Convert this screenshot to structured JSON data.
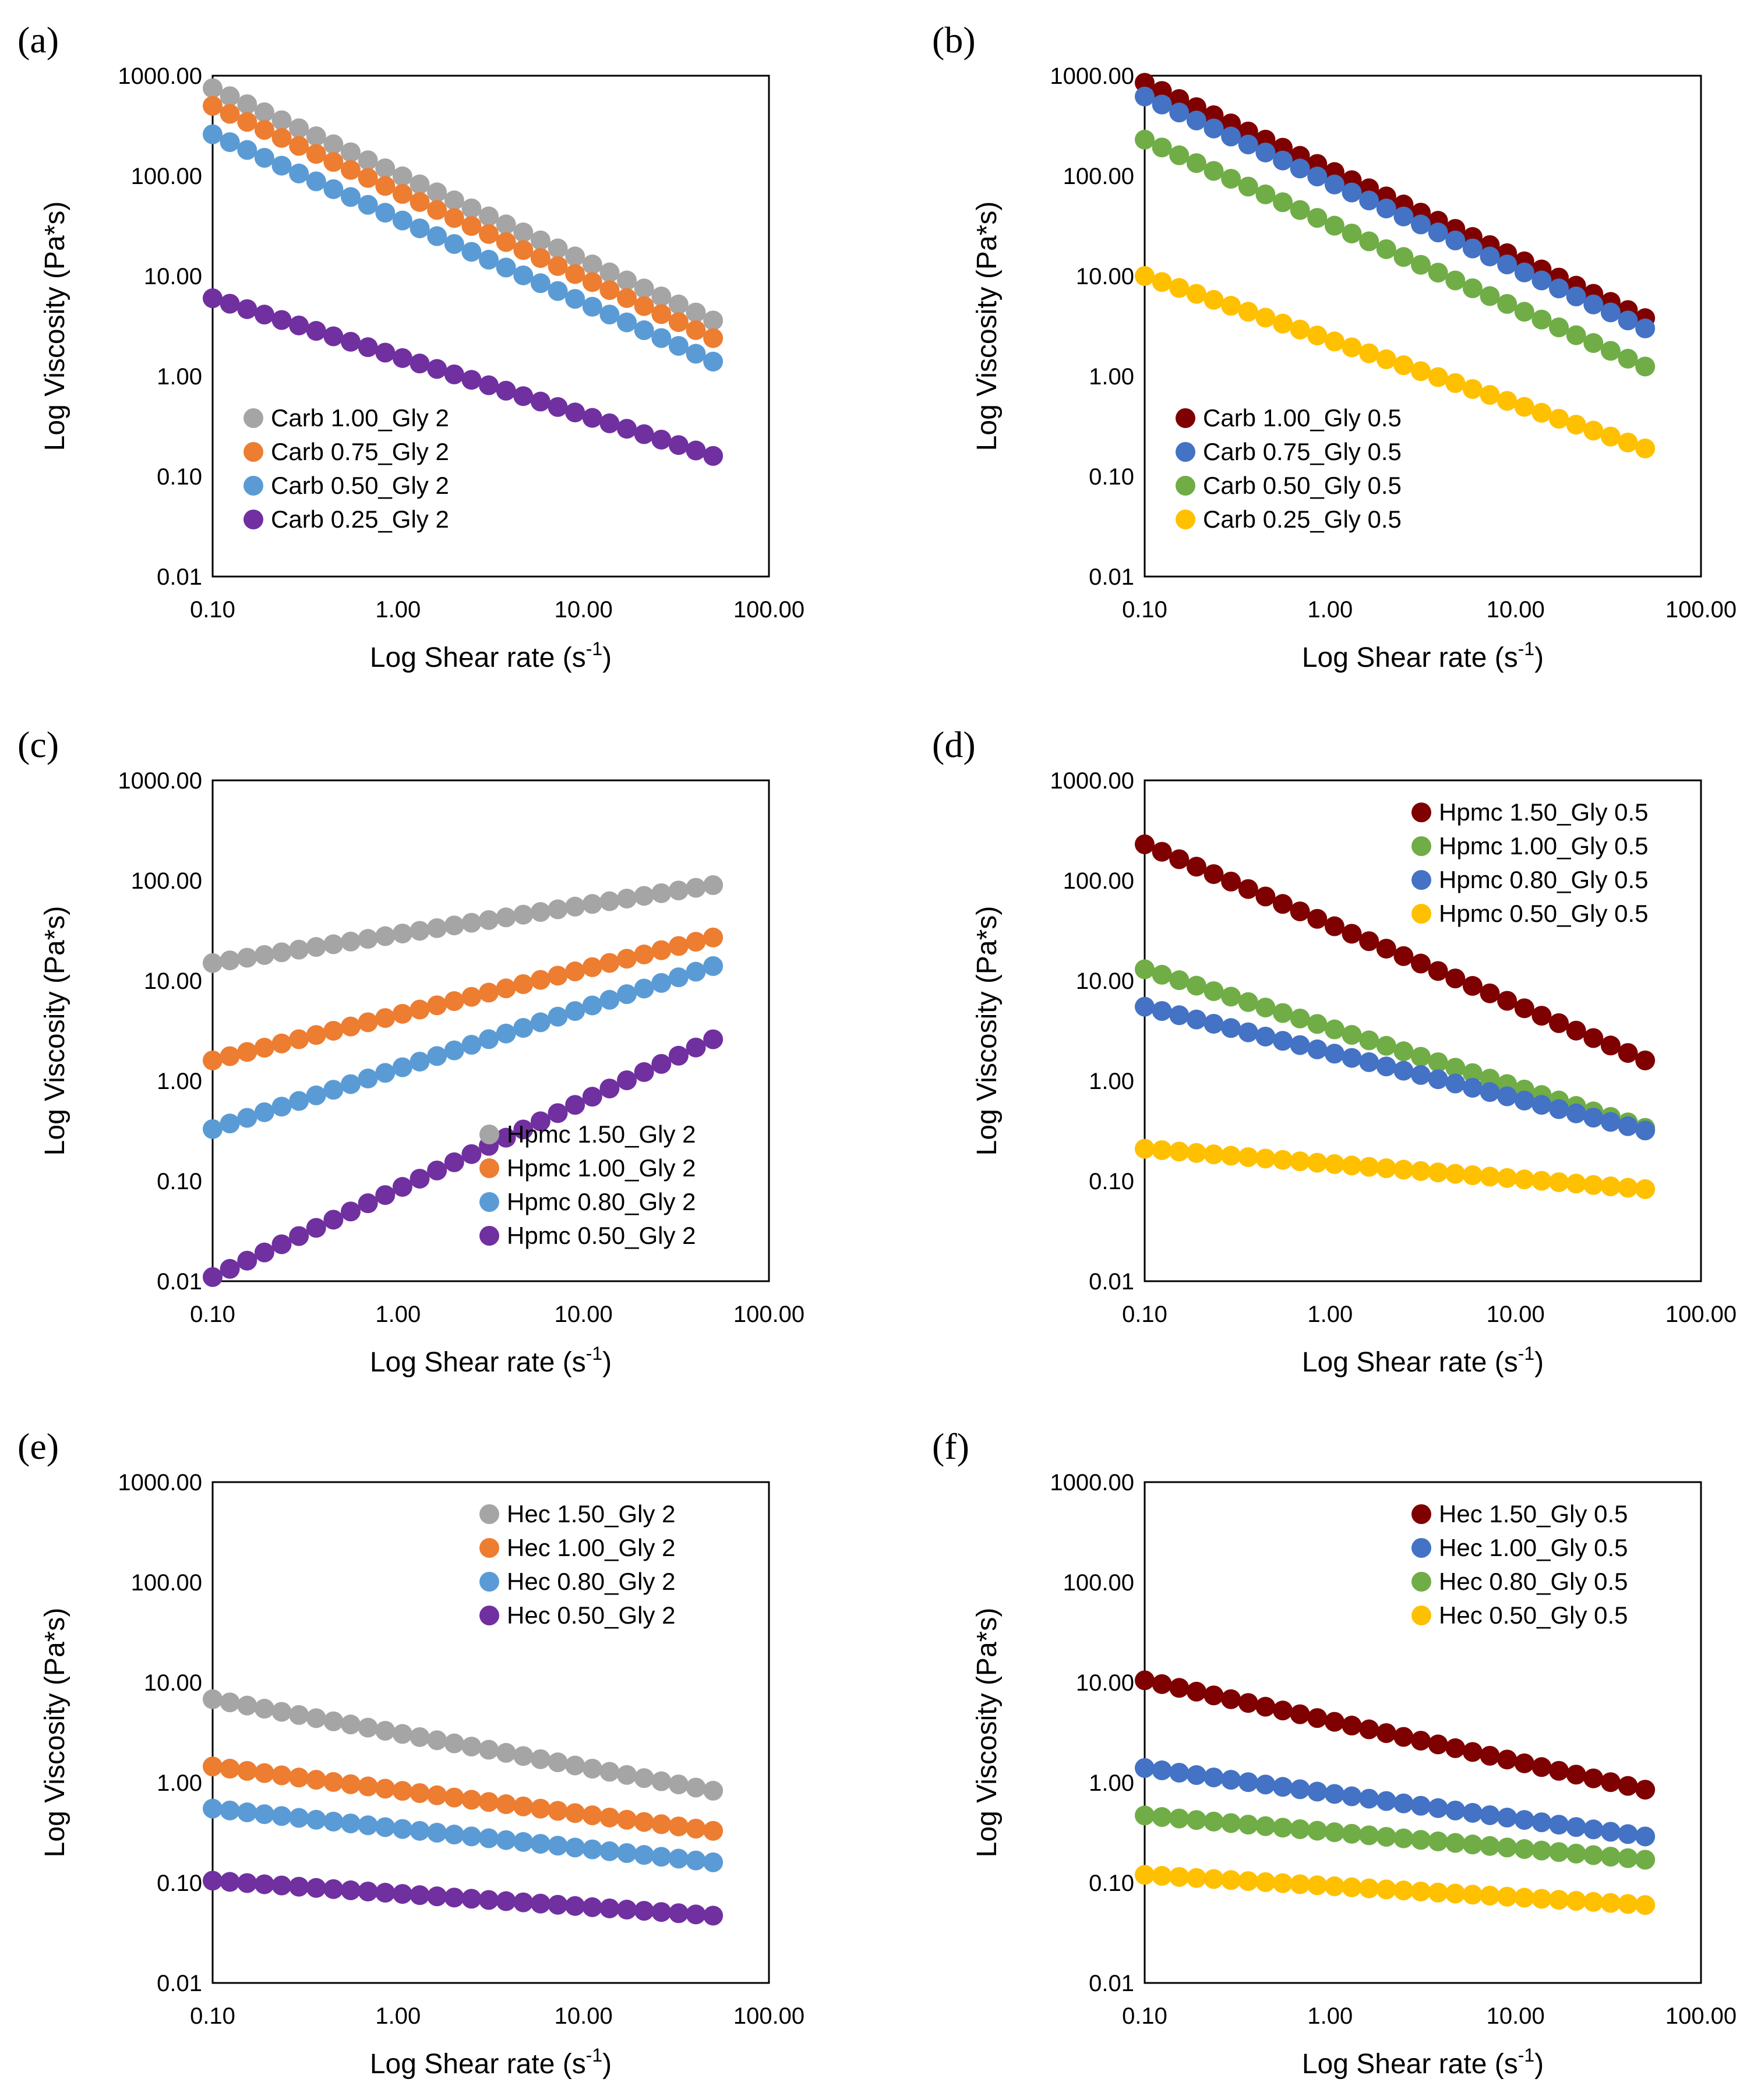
{
  "chart_data": [
    {
      "type": "scatter",
      "panel_label": "(a)",
      "xlabel": "Log Shear rate (s",
      "xlabel_exponent": "-1",
      "xlabel_suffix": ")",
      "ylabel": "Log Viscosity (Pa*s)",
      "x_scale": "log",
      "y_scale": "log",
      "xlim": [
        0.1,
        100
      ],
      "ylim": [
        0.01,
        1000
      ],
      "xticks": [
        "0.10",
        "1.00",
        "10.00",
        "100.00"
      ],
      "yticks": [
        "0.01",
        "0.10",
        "1.00",
        "10.00",
        "100.00",
        "1000.00"
      ],
      "legend_position": "bottom-left",
      "x_range": [
        0.1,
        50
      ],
      "points_per_series": 30,
      "series": [
        {
          "name": "Carb 1.00_Gly 2",
          "color": "#a5a5a5",
          "y_start": 750,
          "y_end": 3.6
        },
        {
          "name": "Carb 0.75_Gly 2",
          "color": "#ed7d31",
          "y_start": 500,
          "y_end": 2.4
        },
        {
          "name": "Carb 0.50_Gly 2",
          "color": "#5b9bd5",
          "y_start": 260,
          "y_end": 1.4
        },
        {
          "name": "Carb 0.25_Gly 2",
          "color": "#7030a0",
          "y_start": 6.0,
          "y_end": 0.16
        }
      ]
    },
    {
      "type": "scatter",
      "panel_label": "(b)",
      "xlabel": "Log Shear rate (s",
      "xlabel_exponent": "-1",
      "xlabel_suffix": ")",
      "ylabel": "Log Viscosity (Pa*s)",
      "x_scale": "log",
      "y_scale": "log",
      "xlim": [
        0.1,
        100
      ],
      "ylim": [
        0.01,
        1000
      ],
      "xticks": [
        "0.10",
        "1.00",
        "10.00",
        "100.00"
      ],
      "yticks": [
        "0.01",
        "0.10",
        "1.00",
        "10.00",
        "100.00",
        "1000.00"
      ],
      "legend_position": "bottom-left",
      "x_range": [
        0.1,
        50
      ],
      "points_per_series": 30,
      "series": [
        {
          "name": "Carb 1.00_Gly 0.5",
          "color": "#7f0000",
          "y_start": 850,
          "y_end": 3.8
        },
        {
          "name": "Carb 0.75_Gly 0.5",
          "color": "#4472c4",
          "y_start": 620,
          "y_end": 3.0
        },
        {
          "name": "Carb 0.50_Gly 0.5",
          "color": "#70ad47",
          "y_start": 230,
          "y_end": 1.25
        },
        {
          "name": "Carb 0.25_Gly 0.5",
          "color": "#ffc000",
          "y_start": 10.0,
          "y_end": 0.19
        }
      ]
    },
    {
      "type": "scatter",
      "panel_label": "(c)",
      "xlabel": "Log Shear rate (s",
      "xlabel_exponent": "-1",
      "xlabel_suffix": ")",
      "ylabel": "Log Viscosity (Pa*s)",
      "x_scale": "log",
      "y_scale": "log",
      "xlim": [
        0.1,
        100
      ],
      "ylim": [
        0.01,
        1000
      ],
      "xticks": [
        "0.10",
        "1.00",
        "10.00",
        "100.00"
      ],
      "yticks": [
        "0.01",
        "0.10",
        "1.00",
        "10.00",
        "100.00",
        "1000.00"
      ],
      "legend_position": "bottom-right",
      "x_range": [
        0.1,
        50
      ],
      "points_per_series": 30,
      "series": [
        {
          "name": "Hpmc 1.50_Gly 2",
          "color": "#a5a5a5",
          "y_start": 15,
          "y_end": 90
        },
        {
          "name": "Hpmc 1.00_Gly 2",
          "color": "#ed7d31",
          "y_start": 1.6,
          "y_end": 27
        },
        {
          "name": "Hpmc 0.80_Gly 2",
          "color": "#5b9bd5",
          "y_start": 0.33,
          "y_end": 14
        },
        {
          "name": "Hpmc 0.50_Gly 2",
          "color": "#7030a0",
          "y_start": 0.011,
          "y_end": 2.6
        }
      ]
    },
    {
      "type": "scatter",
      "panel_label": "(d)",
      "xlabel": "Log Shear rate (s",
      "xlabel_exponent": "-1",
      "xlabel_suffix": ")",
      "ylabel": "Log Viscosity (Pa*s)",
      "x_scale": "log",
      "y_scale": "log",
      "xlim": [
        0.1,
        100
      ],
      "ylim": [
        0.01,
        1000
      ],
      "xticks": [
        "0.10",
        "1.00",
        "10.00",
        "100.00"
      ],
      "yticks": [
        "0.01",
        "0.10",
        "1.00",
        "10.00",
        "100.00",
        "1000.00"
      ],
      "legend_position": "top-right",
      "x_range": [
        0.1,
        50
      ],
      "points_per_series": 30,
      "series": [
        {
          "name": "Hpmc 1.50_Gly 0.5",
          "color": "#7f0000",
          "y_start": 230,
          "y_end": 1.6
        },
        {
          "name": "Hpmc 1.00_Gly 0.5",
          "color": "#70ad47",
          "y_start": 13,
          "y_end": 0.34
        },
        {
          "name": "Hpmc 0.80_Gly 0.5",
          "color": "#4472c4",
          "y_start": 5.5,
          "y_end": 0.32
        },
        {
          "name": "Hpmc 0.50_Gly 0.5",
          "color": "#ffc000",
          "y_start": 0.21,
          "y_end": 0.083
        }
      ]
    },
    {
      "type": "scatter",
      "panel_label": "(e)",
      "xlabel": "Log Shear rate (s",
      "xlabel_exponent": "-1",
      "xlabel_suffix": ")",
      "ylabel": "Log Viscosity (Pa*s)",
      "x_scale": "log",
      "y_scale": "log",
      "xlim": [
        0.1,
        100
      ],
      "ylim": [
        0.01,
        1000
      ],
      "xticks": [
        "0.10",
        "1.00",
        "10.00",
        "100.00"
      ],
      "yticks": [
        "0.01",
        "0.10",
        "1.00",
        "10.00",
        "100.00",
        "1000.00"
      ],
      "legend_position": "top-right",
      "x_range": [
        0.1,
        50
      ],
      "points_per_series": 30,
      "series": [
        {
          "name": "Hec 1.50_Gly 2",
          "color": "#a5a5a5",
          "y_start": 6.8,
          "y_end": 0.83
        },
        {
          "name": "Hec 1.00_Gly 2",
          "color": "#ed7d31",
          "y_start": 1.45,
          "y_end": 0.33
        },
        {
          "name": "Hec 0.80_Gly 2",
          "color": "#5b9bd5",
          "y_start": 0.55,
          "y_end": 0.16
        },
        {
          "name": "Hec 0.50_Gly 2",
          "color": "#7030a0",
          "y_start": 0.105,
          "y_end": 0.047
        }
      ]
    },
    {
      "type": "scatter",
      "panel_label": "(f)",
      "xlabel": "Log Shear rate (s",
      "xlabel_exponent": "-1",
      "xlabel_suffix": ")",
      "ylabel": "Log Viscosity (Pa*s)",
      "x_scale": "log",
      "y_scale": "log",
      "xlim": [
        0.1,
        100
      ],
      "ylim": [
        0.01,
        1000
      ],
      "xticks": [
        "0.10",
        "1.00",
        "10.00",
        "100.00"
      ],
      "yticks": [
        "0.01",
        "0.10",
        "1.00",
        "10.00",
        "100.00",
        "1000.00"
      ],
      "legend_position": "top-right",
      "x_range": [
        0.1,
        50
      ],
      "points_per_series": 30,
      "series": [
        {
          "name": "Hec 1.50_Gly 0.5",
          "color": "#7f0000",
          "y_start": 10.5,
          "y_end": 0.85
        },
        {
          "name": "Hec 1.00_Gly 0.5",
          "color": "#4472c4",
          "y_start": 1.4,
          "y_end": 0.29
        },
        {
          "name": "Hec 0.80_Gly 0.5",
          "color": "#70ad47",
          "y_start": 0.47,
          "y_end": 0.17
        },
        {
          "name": "Hec 0.50_Gly 0.5",
          "color": "#ffc000",
          "y_start": 0.12,
          "y_end": 0.06
        }
      ]
    }
  ]
}
